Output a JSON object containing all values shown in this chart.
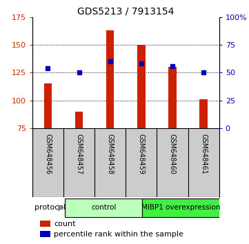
{
  "title": "GDS5213 / 7913154",
  "samples": [
    "GSM648456",
    "GSM648457",
    "GSM648458",
    "GSM648459",
    "GSM648460",
    "GSM648461"
  ],
  "counts": [
    115,
    90,
    163,
    150,
    130,
    101
  ],
  "percentile_left_vals": [
    129,
    125,
    135,
    133,
    131,
    125
  ],
  "ylim_left": [
    75,
    175
  ],
  "ylim_right": [
    0,
    100
  ],
  "yticks_left": [
    75,
    100,
    125,
    150
  ],
  "yticks_right": [
    0,
    25,
    50,
    75,
    100
  ],
  "bar_color": "#CC2200",
  "dot_color": "#0000BB",
  "groups": [
    {
      "label": "control",
      "start": 0,
      "end": 3,
      "color": "#BBFFBB"
    },
    {
      "label": "MIBP1 overexpression",
      "start": 3,
      "end": 6,
      "color": "#44EE44"
    }
  ],
  "protocol_label": "protocol",
  "legend_count_label": "count",
  "legend_pct_label": "percentile rank within the sample",
  "bg_color": "#FFFFFF",
  "plot_bg_color": "#FFFFFF",
  "tick_label_gray_bg": "#CCCCCC",
  "bar_bottom": 75,
  "bar_width": 0.25,
  "gridline_color": "#000000"
}
